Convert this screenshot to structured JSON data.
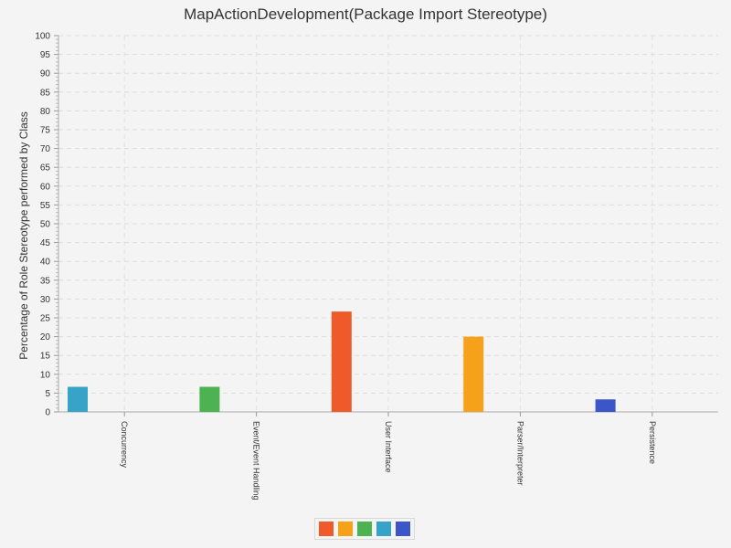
{
  "chart_data": {
    "type": "bar",
    "title": "MapActionDevelopment(Package Import Stereotype)",
    "xlabel": "",
    "ylabel": "Percentage of Role Stereotype performed by Class",
    "ylim": [
      0,
      100
    ],
    "ytick_step": 5,
    "grid": true,
    "legend_position": "bottom-center",
    "categories": [
      "Concurrency",
      "Event/Event Handling",
      "User Interface",
      "Parser/Interpreter",
      "Persistence"
    ],
    "series": [
      {
        "color": "#f05a2a",
        "values": [
          0,
          0,
          26.67,
          0,
          0
        ]
      },
      {
        "color": "#f7a11a",
        "values": [
          0,
          0,
          0,
          20,
          0
        ]
      },
      {
        "color": "#4db352",
        "values": [
          0,
          6.67,
          0,
          0,
          0
        ]
      },
      {
        "color": "#37a3c6",
        "values": [
          6.67,
          0,
          0,
          0,
          0
        ]
      },
      {
        "color": "#3c55c8",
        "values": [
          0,
          0,
          0,
          0,
          3.33
        ]
      }
    ]
  }
}
